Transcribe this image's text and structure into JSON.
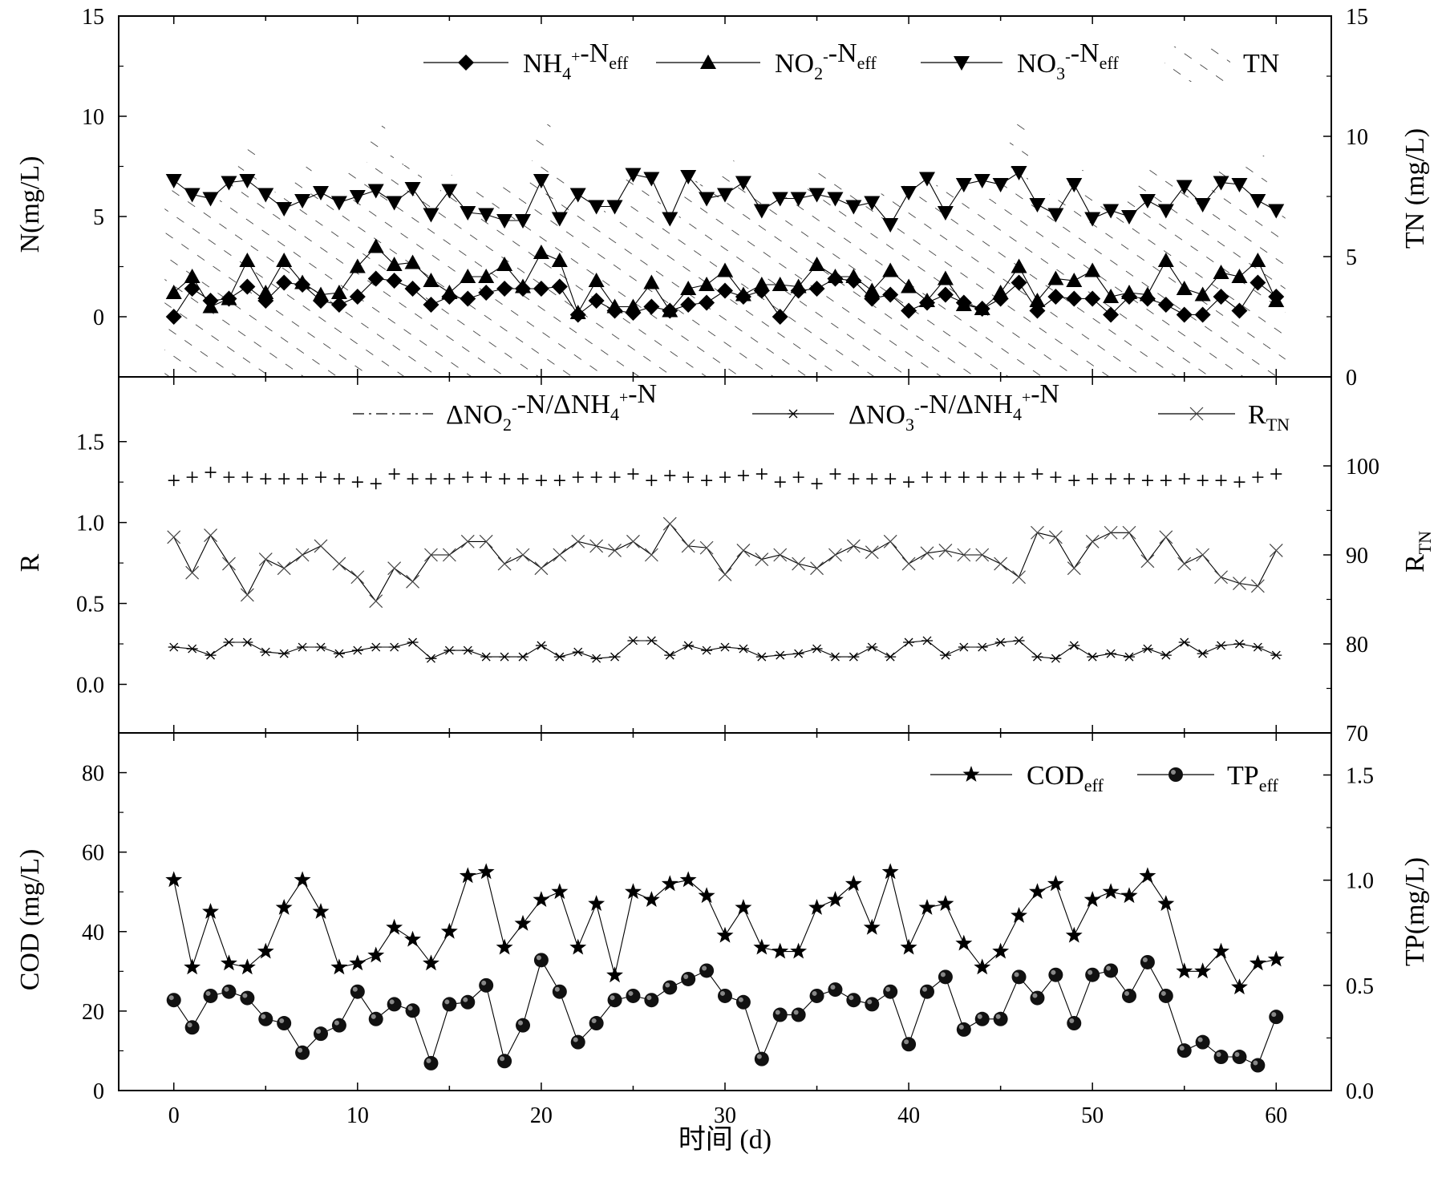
{
  "chart_data": [
    {
      "panel": "top",
      "type": "line",
      "xlim": [
        -3,
        63
      ],
      "ylabel": "N(mg/L)",
      "ylim": [
        -3,
        15
      ],
      "yticks": [
        0,
        5,
        10,
        15
      ],
      "y2label": "TN (mg/L)",
      "y2lim": [
        0,
        15
      ],
      "y2ticks": [
        0,
        5,
        10,
        15
      ],
      "legend": [
        {
          "text": "NH",
          "sub": "4",
          "sup": "+",
          "text2": "-N",
          "sub2": "eff"
        },
        {
          "text": "NO",
          "sub": "2",
          "sup": "-",
          "text2": "-N",
          "sub2": "eff"
        },
        {
          "text": "NO",
          "sub": "3",
          "sup": "-",
          "text2": "-N",
          "sub2": "eff"
        },
        {
          "text": "TN",
          "sub": "",
          "sup": "",
          "text2": "",
          "sub2": ""
        }
      ],
      "series": [
        {
          "name": "NH4+-Neff",
          "color": "#000000",
          "values": [
            0,
            1.4,
            0.8,
            0.9,
            1.5,
            0.8,
            1.7,
            1.6,
            0.8,
            0.6,
            1.0,
            1.9,
            1.8,
            1.4,
            0.6,
            1.0,
            0.9,
            1.2,
            1.4,
            1.4,
            1.4,
            1.5,
            0.1,
            0.8,
            0.3,
            0.2,
            0.5,
            0.3,
            0.6,
            0.7,
            1.3,
            1.0,
            1.3,
            0.0,
            1.3,
            1.4,
            1.9,
            1.8,
            0.9,
            1.1,
            0.3,
            0.7,
            1.1,
            0.7,
            0.4,
            0.9,
            1.7,
            0.3,
            1.0,
            0.9,
            0.9,
            0.1,
            1.0,
            0.9,
            0.6,
            0.1,
            0.1,
            1.0,
            0.3,
            1.7,
            1.0
          ]
        },
        {
          "name": "NO2--Neff",
          "color": "#000000",
          "values": [
            1.2,
            2.0,
            0.5,
            0.9,
            2.8,
            1.2,
            2.8,
            1.7,
            1.1,
            1.2,
            2.5,
            3.5,
            2.6,
            2.7,
            1.8,
            1.2,
            2.0,
            2.0,
            2.6,
            1.5,
            3.2,
            2.8,
            0.2,
            1.8,
            0.5,
            0.5,
            1.7,
            0.3,
            1.4,
            1.6,
            2.3,
            1.1,
            1.6,
            1.6,
            1.5,
            2.6,
            2.0,
            2.0,
            1.3,
            2.3,
            1.5,
            0.8,
            1.9,
            0.6,
            0.4,
            1.2,
            2.5,
            0.8,
            1.9,
            1.8,
            2.3,
            1.0,
            1.2,
            1.1,
            2.8,
            1.4,
            1.1,
            2.2,
            2.0,
            2.8,
            0.8
          ]
        },
        {
          "name": "NO3--Neff",
          "color": "#000000",
          "values": [
            6.8,
            6.1,
            5.9,
            6.7,
            6.8,
            6.1,
            5.4,
            5.8,
            6.2,
            5.7,
            6.0,
            6.3,
            5.7,
            6.4,
            5.1,
            6.3,
            5.2,
            5.1,
            4.8,
            4.8,
            6.8,
            4.9,
            6.1,
            5.5,
            5.5,
            7.1,
            6.9,
            4.9,
            7.0,
            5.9,
            6.1,
            6.7,
            5.3,
            5.9,
            5.9,
            6.1,
            5.9,
            5.5,
            5.7,
            4.6,
            6.2,
            6.9,
            5.2,
            6.6,
            6.8,
            6.6,
            7.2,
            5.6,
            5.1,
            6.6,
            4.9,
            5.3,
            5.0,
            5.8,
            5.3,
            6.5,
            5.6,
            6.7,
            6.6,
            5.8,
            5.3
          ]
        },
        {
          "name": "TN",
          "color": "#000000",
          "values": [
            8.0,
            7.6,
            7.2,
            8.4,
            9.6,
            7.6,
            8.1,
            8.8,
            7.8,
            7.6,
            8.8,
            10.5,
            9.2,
            8.8,
            7.4,
            8.4,
            7.8,
            8.0,
            8.1,
            8.2,
            10.6,
            8.4,
            6.8,
            7.6,
            6.6,
            8.2,
            8.0,
            6.2,
            8.4,
            8.0,
            9.0,
            8.0,
            7.6,
            7.6,
            8.0,
            8.6,
            8.2,
            8.0,
            7.6,
            8.0,
            8.0,
            7.8,
            8.2,
            7.6,
            7.4,
            8.6,
            10.6,
            7.4,
            7.6,
            8.6,
            7.8,
            7.4,
            8.0,
            8.8,
            8.4,
            8.0,
            7.6,
            8.8,
            8.8,
            9.2,
            7.4
          ]
        }
      ]
    },
    {
      "panel": "middle",
      "type": "line",
      "xlim": [
        -3,
        63
      ],
      "ylabel": "R",
      "ylim": [
        -0.3,
        1.9
      ],
      "yticks": [
        0.0,
        0.5,
        1.0,
        1.5
      ],
      "y2label": "R",
      "y2label_sub": "TN",
      "y2lim": [
        70,
        110
      ],
      "y2ticks": [
        70,
        80,
        90,
        100
      ],
      "legend": [
        {
          "text": "ΔNO",
          "sub": "2",
          "sup": "-",
          "text2": "-N/ΔNH",
          "sub2": "4",
          "sup2": "+",
          "text3": "-N"
        },
        {
          "text": "ΔNO",
          "sub": "3",
          "sup": "-",
          "text2": "-N/ΔNH",
          "sub2": "4",
          "sup2": "+",
          "text3": "-N"
        },
        {
          "text": "R",
          "sub": "TN",
          "sup": "",
          "text2": "",
          "sub2": "",
          "sup2": "",
          "text3": ""
        }
      ],
      "series": [
        {
          "name": "ΔNO2--N/ΔNH4+-N",
          "color": "#000000",
          "values": [
            1.26,
            1.28,
            1.31,
            1.28,
            1.28,
            1.27,
            1.27,
            1.27,
            1.28,
            1.27,
            1.25,
            1.24,
            1.3,
            1.27,
            1.27,
            1.27,
            1.28,
            1.28,
            1.27,
            1.27,
            1.26,
            1.26,
            1.28,
            1.28,
            1.28,
            1.3,
            1.26,
            1.29,
            1.28,
            1.26,
            1.28,
            1.29,
            1.3,
            1.25,
            1.28,
            1.24,
            1.3,
            1.27,
            1.27,
            1.27,
            1.25,
            1.28,
            1.28,
            1.28,
            1.28,
            1.28,
            1.28,
            1.3,
            1.28,
            1.26,
            1.27,
            1.27,
            1.27,
            1.26,
            1.26,
            1.27,
            1.26,
            1.26,
            1.25,
            1.28,
            1.3
          ]
        },
        {
          "name": "ΔNO3--N/ΔNH4+-N",
          "color": "#000000",
          "values": [
            0.23,
            0.22,
            0.18,
            0.26,
            0.26,
            0.2,
            0.19,
            0.23,
            0.23,
            0.19,
            0.21,
            0.23,
            0.23,
            0.26,
            0.16,
            0.21,
            0.21,
            0.17,
            0.17,
            0.17,
            0.24,
            0.17,
            0.2,
            0.16,
            0.17,
            0.27,
            0.27,
            0.18,
            0.24,
            0.21,
            0.23,
            0.22,
            0.17,
            0.18,
            0.19,
            0.22,
            0.17,
            0.17,
            0.23,
            0.17,
            0.26,
            0.27,
            0.18,
            0.23,
            0.23,
            0.26,
            0.27,
            0.17,
            0.16,
            0.24,
            0.17,
            0.19,
            0.17,
            0.22,
            0.18,
            0.26,
            0.19,
            0.24,
            0.25,
            0.23,
            0.18
          ]
        },
        {
          "name": "RTN",
          "color": "#000000",
          "values": [
            92.0,
            88.0,
            92.2,
            89.0,
            85.5,
            89.5,
            88.5,
            90.0,
            91.0,
            89.0,
            87.5,
            84.8,
            88.5,
            87.0,
            90.0,
            90.0,
            91.5,
            91.5,
            89.0,
            90.0,
            88.5,
            90.0,
            91.5,
            91.0,
            90.5,
            91.5,
            90.0,
            93.5,
            91.0,
            90.8,
            87.8,
            90.5,
            89.5,
            90.0,
            89.0,
            88.5,
            90.0,
            91.0,
            90.3,
            91.5,
            89.0,
            90.2,
            90.5,
            90.0,
            90.0,
            89.0,
            87.5,
            92.5,
            92.0,
            88.5,
            91.5,
            92.5,
            92.5,
            89.3,
            92.0,
            89.0,
            90.0,
            87.5,
            86.8,
            86.5,
            90.5
          ]
        }
      ]
    },
    {
      "panel": "bottom",
      "type": "line",
      "xlim": [
        -3,
        63
      ],
      "xticks": [
        0,
        10,
        20,
        30,
        40,
        50,
        60
      ],
      "xlabel": "时间 (d)",
      "ylabel": "COD (mg/L)",
      "ylim": [
        0,
        90
      ],
      "yticks": [
        0,
        20,
        40,
        60,
        80
      ],
      "y2label": "TP(mg/L)",
      "y2lim": [
        0,
        1.7
      ],
      "y2ticks": [
        0.0,
        0.5,
        1.0,
        1.5
      ],
      "legend": [
        {
          "text": "COD",
          "sub": "eff"
        },
        {
          "text": "TP",
          "sub": "eff"
        }
      ],
      "series": [
        {
          "name": "CODeff",
          "color": "#000000",
          "axis": "left",
          "values": [
            53,
            31,
            45,
            32,
            31,
            35,
            46,
            53,
            45,
            31,
            32,
            34,
            41,
            38,
            32,
            40,
            54,
            55,
            36,
            42,
            48,
            50,
            36,
            47,
            29,
            50,
            48,
            52,
            53,
            49,
            39,
            46,
            36,
            35,
            35,
            46,
            48,
            52,
            41,
            55,
            36,
            46,
            47,
            37,
            31,
            35,
            44,
            50,
            52,
            39,
            48,
            50,
            49,
            54,
            47,
            30,
            30,
            35,
            26,
            32,
            33
          ]
        },
        {
          "name": "TPeff",
          "color": "#000000",
          "axis": "right",
          "values": [
            0.43,
            0.3,
            0.45,
            0.47,
            0.44,
            0.34,
            0.32,
            0.18,
            0.27,
            0.31,
            0.47,
            0.34,
            0.41,
            0.38,
            0.13,
            0.41,
            0.42,
            0.5,
            0.14,
            0.31,
            0.62,
            0.47,
            0.23,
            0.32,
            0.43,
            0.45,
            0.43,
            0.49,
            0.53,
            0.57,
            0.45,
            0.42,
            0.15,
            0.36,
            0.36,
            0.45,
            0.48,
            0.43,
            0.41,
            0.47,
            0.22,
            0.47,
            0.54,
            0.29,
            0.34,
            0.34,
            0.54,
            0.44,
            0.55,
            0.32,
            0.55,
            0.57,
            0.45,
            0.61,
            0.45,
            0.19,
            0.23,
            0.16,
            0.16,
            0.12,
            0.35
          ]
        }
      ]
    }
  ]
}
